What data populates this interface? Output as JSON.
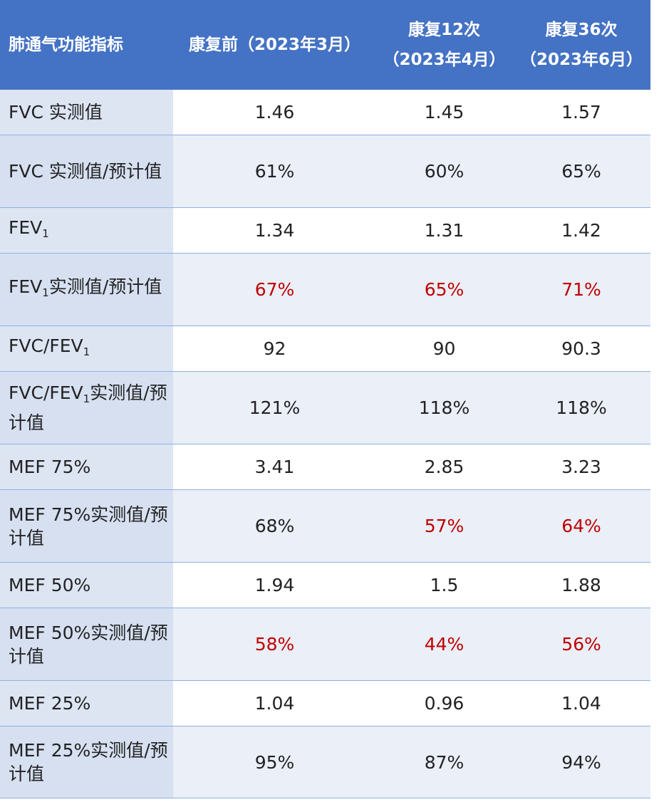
{
  "header": {
    "col0": "肺通气功能指标",
    "col1": "康复前（2023年3月）",
    "col2_line1": "康复12次",
    "col2_line2": "（2023年4月）",
    "col3_line1": "康复36次",
    "col3_line2": "（2023年6月）"
  },
  "rows": [
    {
      "label_a": "FVC 实测值",
      "v1": "1.46",
      "v2": "1.45",
      "v3": "1.57"
    },
    {
      "label_a": "FVC 实测值/预计值",
      "v1": "61%",
      "v2": "60%",
      "v3": "65%"
    },
    {
      "label_a": "FEV",
      "label_sub": "1",
      "v1": "1.34",
      "v2": "1.31",
      "v3": "1.42"
    },
    {
      "label_a": "FEV",
      "label_sub": "1",
      "label_b": "实测值/预计值",
      "v1": "67%",
      "v2": "65%",
      "v3": "71%"
    },
    {
      "label_a": "FVC/FEV",
      "label_sub": "1",
      "v1": "92",
      "v2": "90",
      "v3": "90.3"
    },
    {
      "label_a": "FVC/FEV",
      "label_sub": "1",
      "label_b": "实测值/预计值",
      "v1": "121%",
      "v2": "118%",
      "v3": "118%"
    },
    {
      "label_a": "MEF 75%",
      "v1": "3.41",
      "v2": "2.85",
      "v3": "3.23"
    },
    {
      "label_a": "MEF 75%实测值/预计值",
      "v1": "68%",
      "v2": "57%",
      "v3": "64%"
    },
    {
      "label_a": "MEF 50%",
      "v1": "1.94",
      "v2": "1.5",
      "v3": "1.88"
    },
    {
      "label_a": "MEF 50%实测值/预计值",
      "v1": "58%",
      "v2": "44%",
      "v3": "56%"
    },
    {
      "label_a": "MEF 25%",
      "v1": "1.04",
      "v2": "0.96",
      "v3": "1.04"
    },
    {
      "label_a": "MEF 25%实测值/预计值",
      "v1": "95%",
      "v2": "87%",
      "v3": "94%"
    }
  ],
  "colors": {
    "header_bg": "#4472c4",
    "highlight_text": "#c00000"
  }
}
